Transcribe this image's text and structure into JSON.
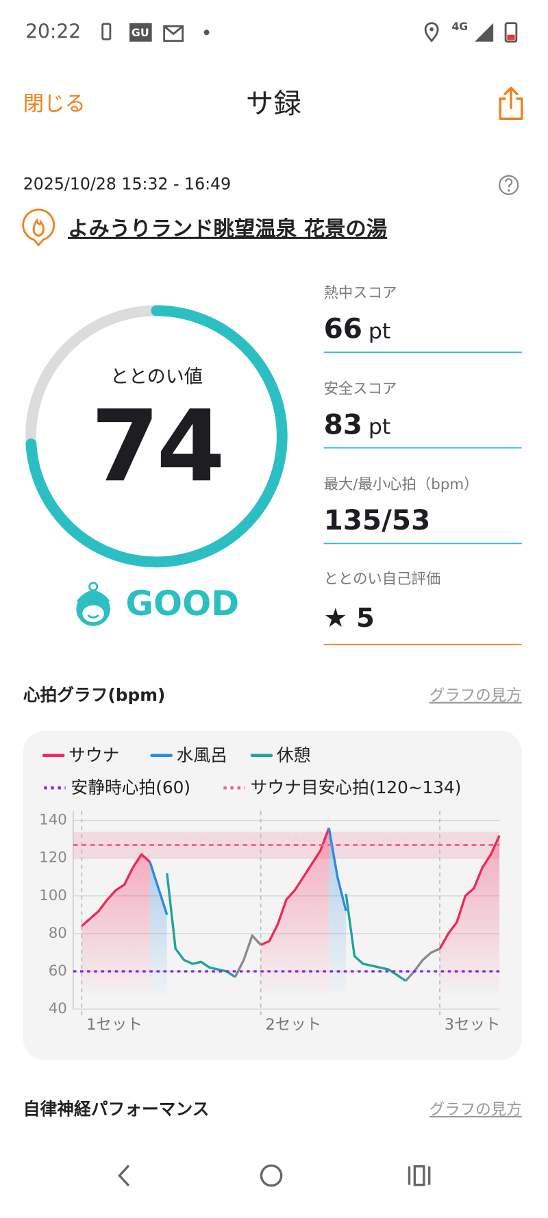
{
  "status_bar": {
    "time": "20:22",
    "badge": "GU",
    "network": "4G"
  },
  "header": {
    "close": "閉じる",
    "title": "サ録"
  },
  "session": {
    "datetime": "2025/10/28 15:32 - 16:49",
    "facility": "よみうりランド眺望温泉 花景の湯"
  },
  "totonoi": {
    "label": "ととのい値",
    "value": 74,
    "gauge_range": [
      0,
      100
    ],
    "rating": "GOOD"
  },
  "scores": [
    {
      "label": "熱中スコア",
      "value": 66,
      "unit": "pt"
    },
    {
      "label": "安全スコア",
      "value": 83,
      "unit": "pt"
    },
    {
      "label": "最大/最小心拍（bpm）",
      "value": "135/53"
    },
    {
      "label": "ととのい自己評価",
      "value": "★ 5"
    }
  ],
  "heart_section": {
    "title": "心拍グラフ(bpm)",
    "help": "グラフの見方"
  },
  "chart_data": {
    "type": "line",
    "categories": [
      null,
      "1セット",
      null,
      null,
      null,
      null,
      null,
      null,
      null,
      null,
      null,
      null,
      null,
      null,
      null,
      null,
      null,
      null,
      null,
      null,
      null,
      null,
      "2セット",
      null,
      null,
      null,
      null,
      null,
      null,
      null,
      null,
      null,
      null,
      null,
      null,
      null,
      null,
      null,
      null,
      null,
      null,
      null,
      null,
      "3セット",
      null,
      null,
      null,
      null,
      null,
      null,
      null
    ],
    "series": [
      {
        "name": "サウナ",
        "color": "#f0285a",
        "area": true,
        "values": [
          null,
          84,
          88,
          92,
          98,
          103,
          106,
          115,
          122,
          118,
          null,
          null,
          null,
          null,
          null,
          null,
          null,
          null,
          null,
          null,
          null,
          null,
          74,
          76,
          85,
          98,
          103,
          110,
          117,
          124,
          136,
          null,
          null,
          null,
          null,
          null,
          null,
          null,
          null,
          null,
          null,
          null,
          null,
          72,
          80,
          86,
          100,
          104,
          115,
          122,
          132
        ]
      },
      {
        "name": "水風呂",
        "color": "#2a8be0",
        "area": true,
        "values": [
          null,
          null,
          null,
          null,
          null,
          null,
          null,
          null,
          null,
          118,
          104,
          90,
          null,
          null,
          null,
          null,
          null,
          null,
          null,
          null,
          null,
          null,
          null,
          null,
          null,
          null,
          null,
          null,
          null,
          null,
          136,
          110,
          92,
          null,
          null,
          null,
          null,
          null,
          null,
          null,
          null,
          null,
          null,
          null,
          null,
          null,
          null,
          null,
          null,
          null,
          null
        ]
      },
      {
        "name": "休憩",
        "color": "#1fa39a",
        "values": [
          null,
          null,
          null,
          null,
          null,
          null,
          null,
          null,
          null,
          null,
          null,
          112,
          72,
          66,
          64,
          65,
          62,
          61,
          60,
          57,
          null,
          null,
          null,
          null,
          null,
          null,
          null,
          null,
          null,
          null,
          null,
          null,
          101,
          68,
          64,
          63,
          62,
          61,
          58,
          55,
          null,
          null,
          null,
          null,
          null,
          null,
          null,
          null,
          null,
          null,
          null
        ]
      },
      {
        "color": "#8a8a8a",
        "values": [
          null,
          null,
          null,
          null,
          null,
          null,
          null,
          null,
          null,
          null,
          null,
          null,
          null,
          null,
          null,
          null,
          null,
          null,
          null,
          57,
          66,
          79,
          74,
          null,
          null,
          null,
          null,
          null,
          null,
          null,
          null,
          null,
          null,
          null,
          null,
          null,
          null,
          null,
          null,
          55,
          60,
          66,
          70,
          72,
          null,
          null,
          null,
          null,
          null,
          null,
          null
        ]
      }
    ],
    "reference_lines": [
      {
        "name": "安静時心拍(60)",
        "value": 60,
        "color": "#8a2be2"
      }
    ],
    "reference_band": {
      "name": "サウナ目安心拍(120~134)",
      "range": [
        120,
        134
      ],
      "line": 127,
      "color": "#f0628a"
    },
    "ylim": [
      40,
      145
    ],
    "yticks": [
      40,
      60,
      80,
      100,
      120,
      140
    ],
    "grid": true
  },
  "autonomic_section": {
    "title": "自律神経パフォーマンス",
    "help": "グラフの見方"
  }
}
